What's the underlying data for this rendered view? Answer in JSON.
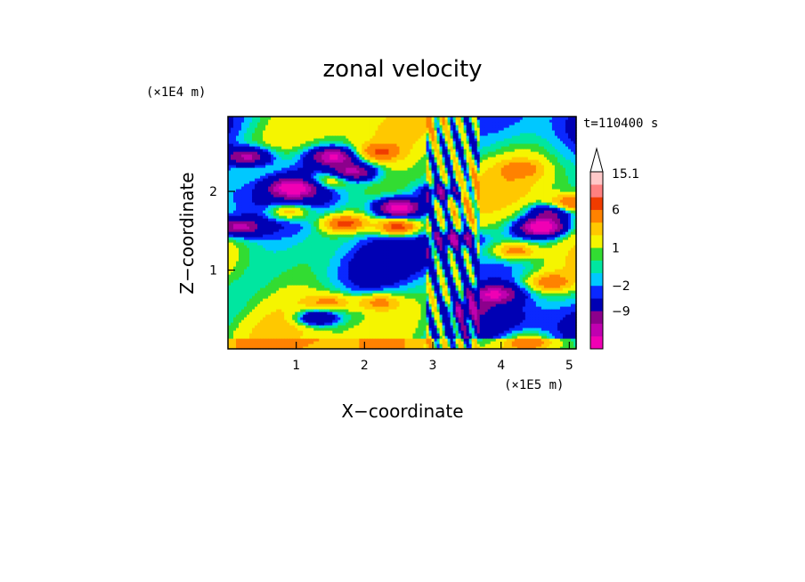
{
  "chart_data": {
    "type": "heatmap",
    "title": "zonal velocity",
    "xlabel": "X−coordinate",
    "ylabel": "Z−coordinate",
    "x_unit": "(×1E5 m)",
    "y_unit": "(×1E4 m)",
    "time_label": "t=110400 s",
    "xlim": [
      0.0,
      5.1
    ],
    "ylim": [
      0.0,
      2.95
    ],
    "x_ticks": [
      "1",
      "2",
      "3",
      "4",
      "5"
    ],
    "y_ticks": [
      "1",
      "2"
    ],
    "colorbar": {
      "levels": [
        -15,
        -12,
        -9,
        -6,
        -2,
        -1,
        0,
        1,
        2,
        4,
        6,
        9,
        12,
        15.1
      ],
      "colors": [
        "#f000b4",
        "#c000b0",
        "#8c008c",
        "#0000b4",
        "#0a28ff",
        "#00c8ff",
        "#00e6a0",
        "#32dc32",
        "#f5f500",
        "#ffc800",
        "#ff8200",
        "#f03c00",
        "#ff8080",
        "#ffc8c8"
      ],
      "labels": [
        "15.1",
        "6",
        "1",
        "−2",
        "−9"
      ],
      "extend_max": true
    },
    "field_features": [
      {
        "x": 0.15,
        "z": 1.55,
        "value": -8
      },
      {
        "x": 0.3,
        "z": 2.45,
        "value": -8
      },
      {
        "x": 0.95,
        "z": 2.05,
        "value": -9
      },
      {
        "x": 1.55,
        "z": 2.45,
        "value": -9
      },
      {
        "x": 1.85,
        "z": 2.25,
        "value": -8
      },
      {
        "x": 2.5,
        "z": 1.8,
        "value": -11
      },
      {
        "x": 3.15,
        "z": 2.0,
        "value": -6
      },
      {
        "x": 3.35,
        "z": 1.4,
        "value": -6
      },
      {
        "x": 4.6,
        "z": 1.55,
        "value": -12
      },
      {
        "x": 4.75,
        "z": 1.75,
        "value": -6
      },
      {
        "x": 3.9,
        "z": 0.7,
        "value": -8
      },
      {
        "x": 1.3,
        "z": 0.4,
        "value": -7
      },
      {
        "x": 0.9,
        "z": 1.75,
        "value": 6
      },
      {
        "x": 1.7,
        "z": 1.6,
        "value": 7
      },
      {
        "x": 2.5,
        "z": 1.55,
        "value": 9
      },
      {
        "x": 1.5,
        "z": 2.15,
        "value": 5
      },
      {
        "x": 2.2,
        "z": 2.5,
        "value": 5
      },
      {
        "x": 2.2,
        "z": 0.6,
        "value": 5
      },
      {
        "x": 1.5,
        "z": 0.6,
        "value": 4
      },
      {
        "x": 4.2,
        "z": 1.25,
        "value": 6
      },
      {
        "x": 5.0,
        "z": 1.85,
        "value": 7
      },
      {
        "x": 4.3,
        "z": 2.3,
        "value": 3
      },
      {
        "x": 4.7,
        "z": 0.85,
        "value": 5
      },
      {
        "x": 3.5,
        "z": 0.5,
        "value": -4
      },
      {
        "x": 4.4,
        "z": 0.1,
        "value": 4
      }
    ]
  }
}
